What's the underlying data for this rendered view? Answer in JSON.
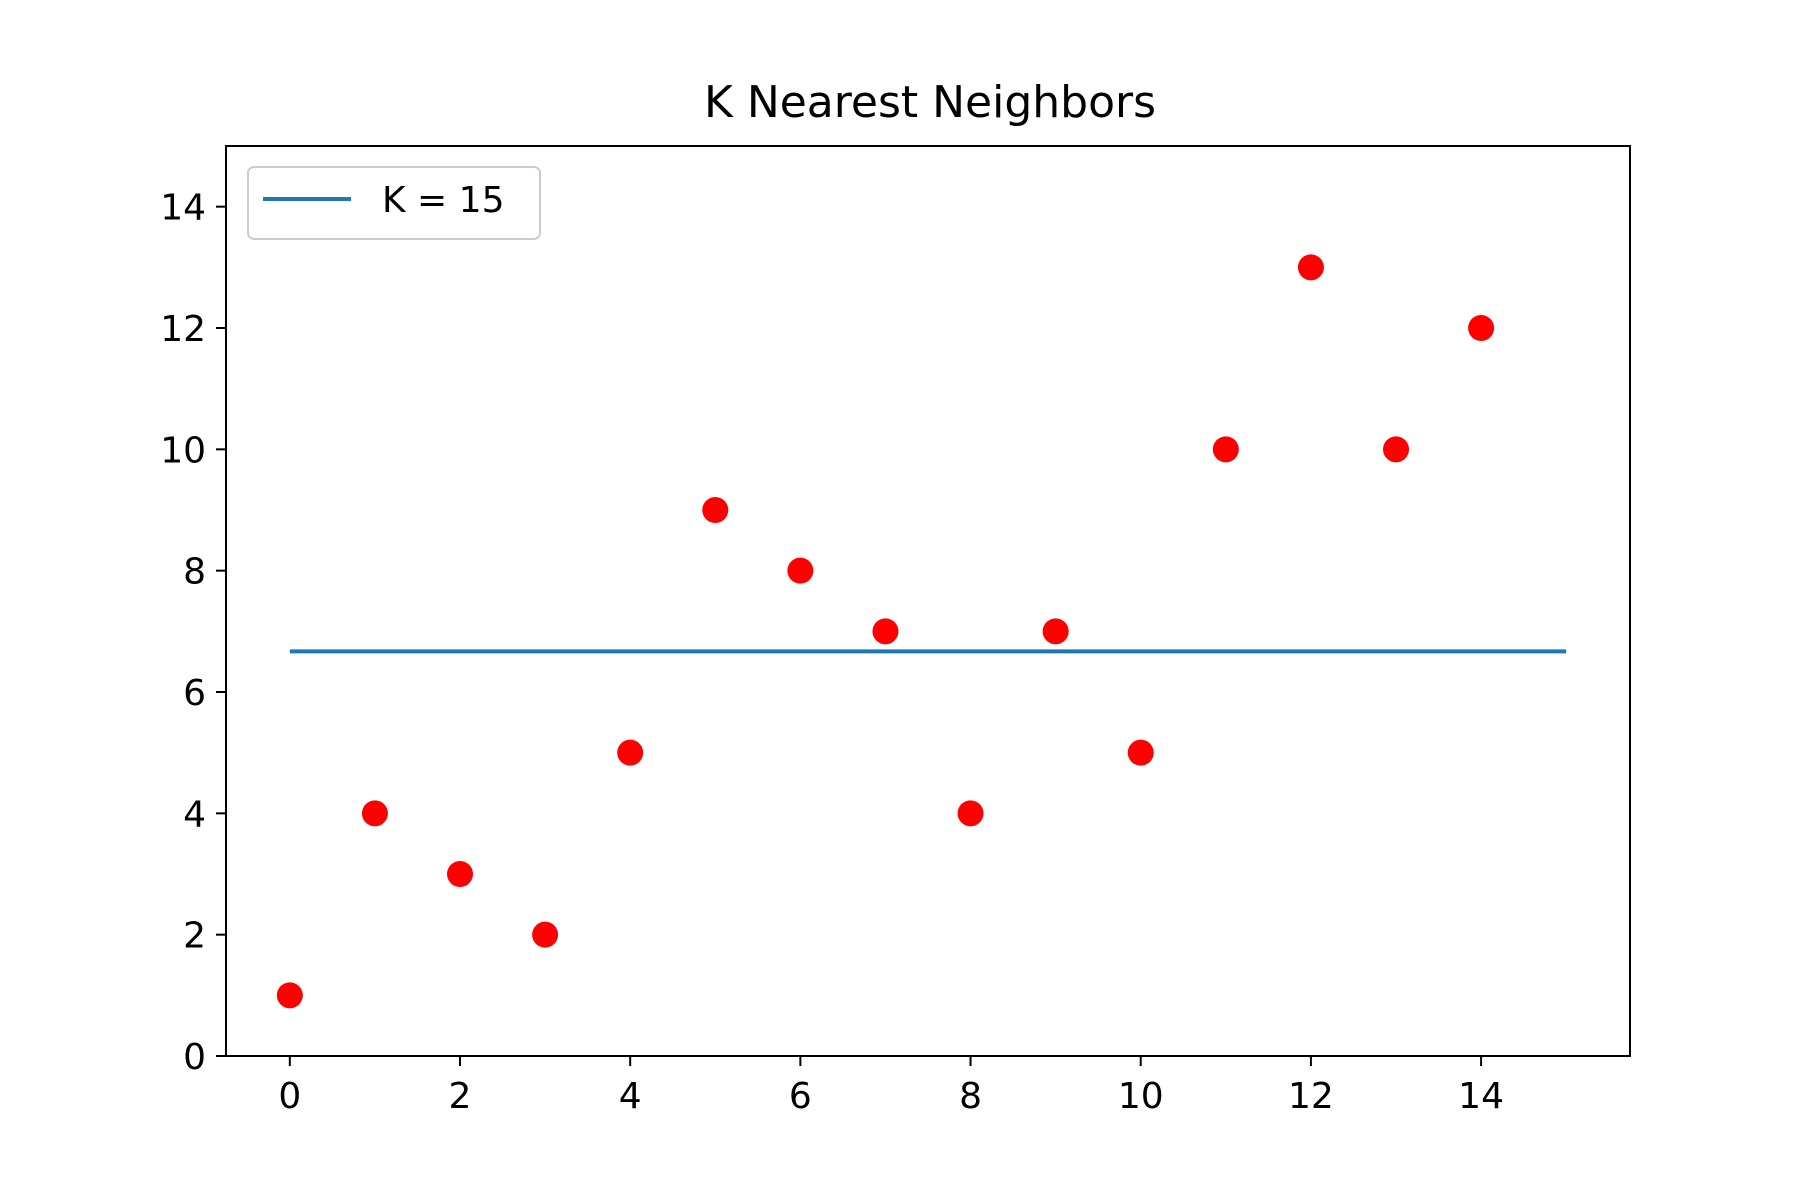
{
  "chart_data": {
    "type": "scatter",
    "title": "K Nearest Neighbors",
    "xlabel": "",
    "ylabel": "",
    "xlim": [
      -0.75,
      15.75
    ],
    "ylim": [
      0,
      15
    ],
    "xticks": [
      0,
      2,
      4,
      6,
      8,
      10,
      12,
      14
    ],
    "yticks": [
      0,
      2,
      4,
      6,
      8,
      10,
      12,
      14
    ],
    "grid": false,
    "legend_position": "top-left",
    "points": {
      "color": "#ff0000",
      "x": [
        0,
        1,
        2,
        3,
        4,
        5,
        6,
        7,
        8,
        9,
        10,
        11,
        12,
        13,
        14
      ],
      "y": [
        1,
        4,
        3,
        2,
        5,
        9,
        8,
        7,
        4,
        7,
        5,
        10,
        13,
        10,
        12
      ]
    },
    "series": [
      {
        "name": "K = 15",
        "type": "line",
        "color": "#1f77b4",
        "x": [
          0,
          15
        ],
        "y": [
          6.67,
          6.67
        ]
      }
    ]
  }
}
